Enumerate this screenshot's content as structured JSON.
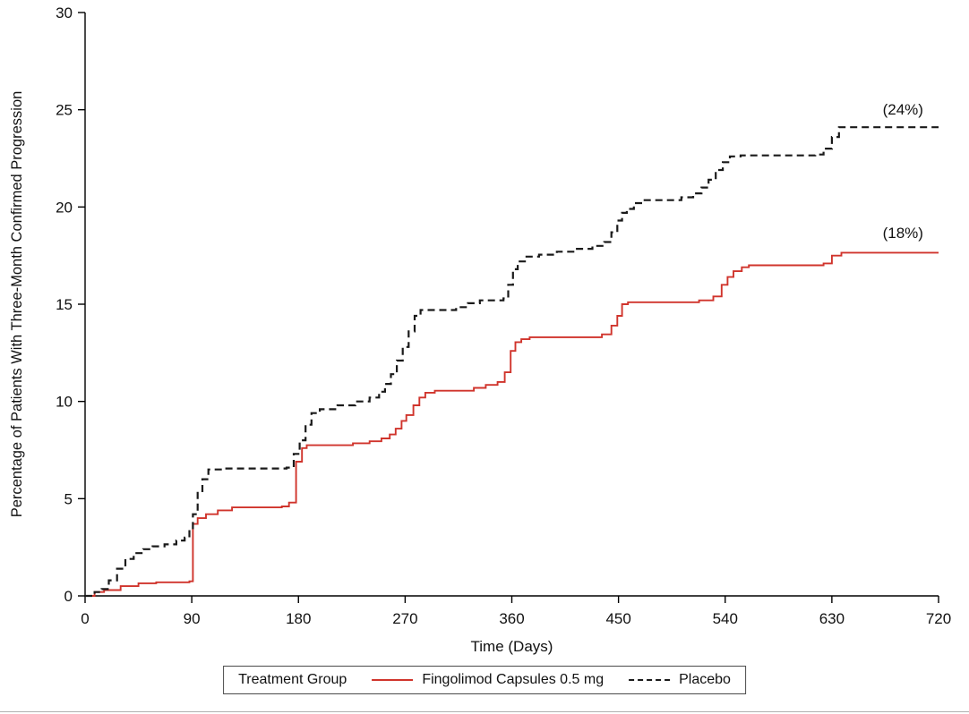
{
  "chart_data": {
    "type": "line",
    "subtype": "kaplan-meier-step",
    "title": "",
    "xlabel": "Time (Days)",
    "ylabel": "Percentage of Patients With Three-Month Confirmed Progression",
    "xlim": [
      0,
      720
    ],
    "ylim": [
      0,
      30
    ],
    "xticks": [
      0,
      90,
      180,
      270,
      360,
      450,
      540,
      630,
      720
    ],
    "yticks": [
      0,
      5,
      10,
      15,
      20,
      25,
      30
    ],
    "grid": false,
    "legend_title": "Treatment Group",
    "legend_position": "bottom",
    "series": [
      {
        "name": "Fingolimod Capsules 0.5 mg",
        "color": "#d0342c",
        "dash": "solid",
        "end_label": "(18%)",
        "points": [
          [
            0,
            0
          ],
          [
            8,
            0.2
          ],
          [
            16,
            0.3
          ],
          [
            30,
            0.5
          ],
          [
            45,
            0.65
          ],
          [
            60,
            0.7
          ],
          [
            88,
            0.75
          ],
          [
            91,
            3.7
          ],
          [
            95,
            4.0
          ],
          [
            102,
            4.2
          ],
          [
            112,
            4.4
          ],
          [
            124,
            4.55
          ],
          [
            166,
            4.6
          ],
          [
            172,
            4.8
          ],
          [
            178,
            6.9
          ],
          [
            183,
            7.6
          ],
          [
            187,
            7.75
          ],
          [
            226,
            7.85
          ],
          [
            240,
            7.95
          ],
          [
            250,
            8.1
          ],
          [
            257,
            8.3
          ],
          [
            262,
            8.6
          ],
          [
            267,
            9.0
          ],
          [
            271,
            9.3
          ],
          [
            277,
            9.8
          ],
          [
            282,
            10.2
          ],
          [
            287,
            10.45
          ],
          [
            295,
            10.55
          ],
          [
            328,
            10.7
          ],
          [
            338,
            10.85
          ],
          [
            348,
            11.0
          ],
          [
            354,
            11.5
          ],
          [
            359,
            12.6
          ],
          [
            363,
            13.05
          ],
          [
            368,
            13.2
          ],
          [
            375,
            13.3
          ],
          [
            436,
            13.45
          ],
          [
            444,
            13.9
          ],
          [
            449,
            14.4
          ],
          [
            453,
            15.0
          ],
          [
            458,
            15.1
          ],
          [
            518,
            15.2
          ],
          [
            530,
            15.4
          ],
          [
            537,
            16.0
          ],
          [
            542,
            16.4
          ],
          [
            547,
            16.7
          ],
          [
            554,
            16.9
          ],
          [
            560,
            17.0
          ],
          [
            623,
            17.1
          ],
          [
            630,
            17.5
          ],
          [
            638,
            17.65
          ],
          [
            720,
            17.65
          ]
        ]
      },
      {
        "name": "Placebo",
        "color": "#1a1a1a",
        "dash": "dashed",
        "end_label": "(24%)",
        "points": [
          [
            0,
            0
          ],
          [
            8,
            0.2
          ],
          [
            14,
            0.35
          ],
          [
            20,
            0.8
          ],
          [
            27,
            1.4
          ],
          [
            34,
            1.9
          ],
          [
            41,
            2.2
          ],
          [
            49,
            2.4
          ],
          [
            57,
            2.55
          ],
          [
            67,
            2.65
          ],
          [
            77,
            2.85
          ],
          [
            84,
            3.0
          ],
          [
            88,
            3.4
          ],
          [
            91,
            4.2
          ],
          [
            95,
            5.3
          ],
          [
            99,
            6.0
          ],
          [
            104,
            6.5
          ],
          [
            116,
            6.55
          ],
          [
            170,
            6.6
          ],
          [
            176,
            7.3
          ],
          [
            181,
            8.0
          ],
          [
            186,
            8.8
          ],
          [
            191,
            9.4
          ],
          [
            198,
            9.6
          ],
          [
            213,
            9.8
          ],
          [
            228,
            10.0
          ],
          [
            240,
            10.2
          ],
          [
            248,
            10.5
          ],
          [
            253,
            10.9
          ],
          [
            258,
            11.4
          ],
          [
            263,
            12.1
          ],
          [
            268,
            12.8
          ],
          [
            273,
            13.6
          ],
          [
            278,
            14.4
          ],
          [
            283,
            14.7
          ],
          [
            313,
            14.85
          ],
          [
            323,
            15.05
          ],
          [
            333,
            15.2
          ],
          [
            353,
            15.3
          ],
          [
            357,
            16.0
          ],
          [
            361,
            16.8
          ],
          [
            365,
            17.2
          ],
          [
            371,
            17.45
          ],
          [
            383,
            17.55
          ],
          [
            398,
            17.7
          ],
          [
            413,
            17.85
          ],
          [
            428,
            18.0
          ],
          [
            438,
            18.2
          ],
          [
            444,
            18.7
          ],
          [
            449,
            19.3
          ],
          [
            453,
            19.7
          ],
          [
            457,
            19.9
          ],
          [
            463,
            20.2
          ],
          [
            470,
            20.35
          ],
          [
            503,
            20.5
          ],
          [
            513,
            20.7
          ],
          [
            520,
            21.0
          ],
          [
            526,
            21.4
          ],
          [
            532,
            21.9
          ],
          [
            538,
            22.3
          ],
          [
            544,
            22.6
          ],
          [
            553,
            22.65
          ],
          [
            616,
            22.7
          ],
          [
            623,
            23.0
          ],
          [
            630,
            23.6
          ],
          [
            636,
            24.1
          ],
          [
            720,
            24.1
          ]
        ]
      }
    ],
    "annotations": [
      {
        "text": "(24%)",
        "x": 690,
        "y": 24.75
      },
      {
        "text": "(18%)",
        "x": 690,
        "y": 18.4
      }
    ]
  }
}
